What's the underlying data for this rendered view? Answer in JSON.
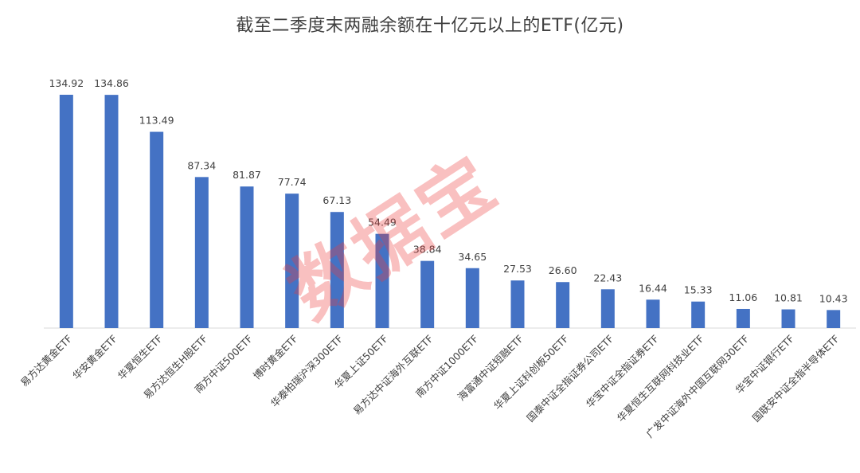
{
  "chart_data": {
    "type": "bar",
    "title": "截至二季度末两融余额在十亿元以上的ETF(亿元)",
    "categories": [
      "易方达黄金ETF",
      "华安黄金ETF",
      "华夏恒生ETF",
      "易方达恒生H股ETF",
      "南方中证500ETF",
      "博时黄金ETF",
      "华泰柏瑞沪深300ETF",
      "华夏上证50ETF",
      "易方达中证海外互联ETF",
      "南方中证1000ETF",
      "海富通中证短融ETF",
      "华夏上证科创板50ETF",
      "国泰中证全指证券公司ETF",
      "华宝中证全指证券ETF",
      "华夏恒生互联网科技业ETF",
      "广发中证海外中国互联网30ETF",
      "华宝中证银行ETF",
      "国联安中证全指半导体ETF"
    ],
    "values": [
      134.92,
      134.86,
      113.49,
      87.34,
      81.87,
      77.74,
      67.13,
      54.49,
      38.84,
      34.65,
      27.53,
      26.6,
      22.43,
      16.44,
      15.33,
      11.06,
      10.81,
      10.43
    ],
    "value_labels": [
      "134.92",
      "134.86",
      "113.49",
      "87.34",
      "81.87",
      "77.74",
      "67.13",
      "54.49",
      "38.84",
      "34.65",
      "27.53",
      "26.60",
      "22.43",
      "16.44",
      "15.33",
      "11.06",
      "10.81",
      "10.43"
    ],
    "xlabel": "",
    "ylabel": "",
    "ylim": [
      0,
      150
    ],
    "grid": false,
    "legend": "none",
    "bar_color": "#4472C4"
  },
  "watermark": "数据宝"
}
